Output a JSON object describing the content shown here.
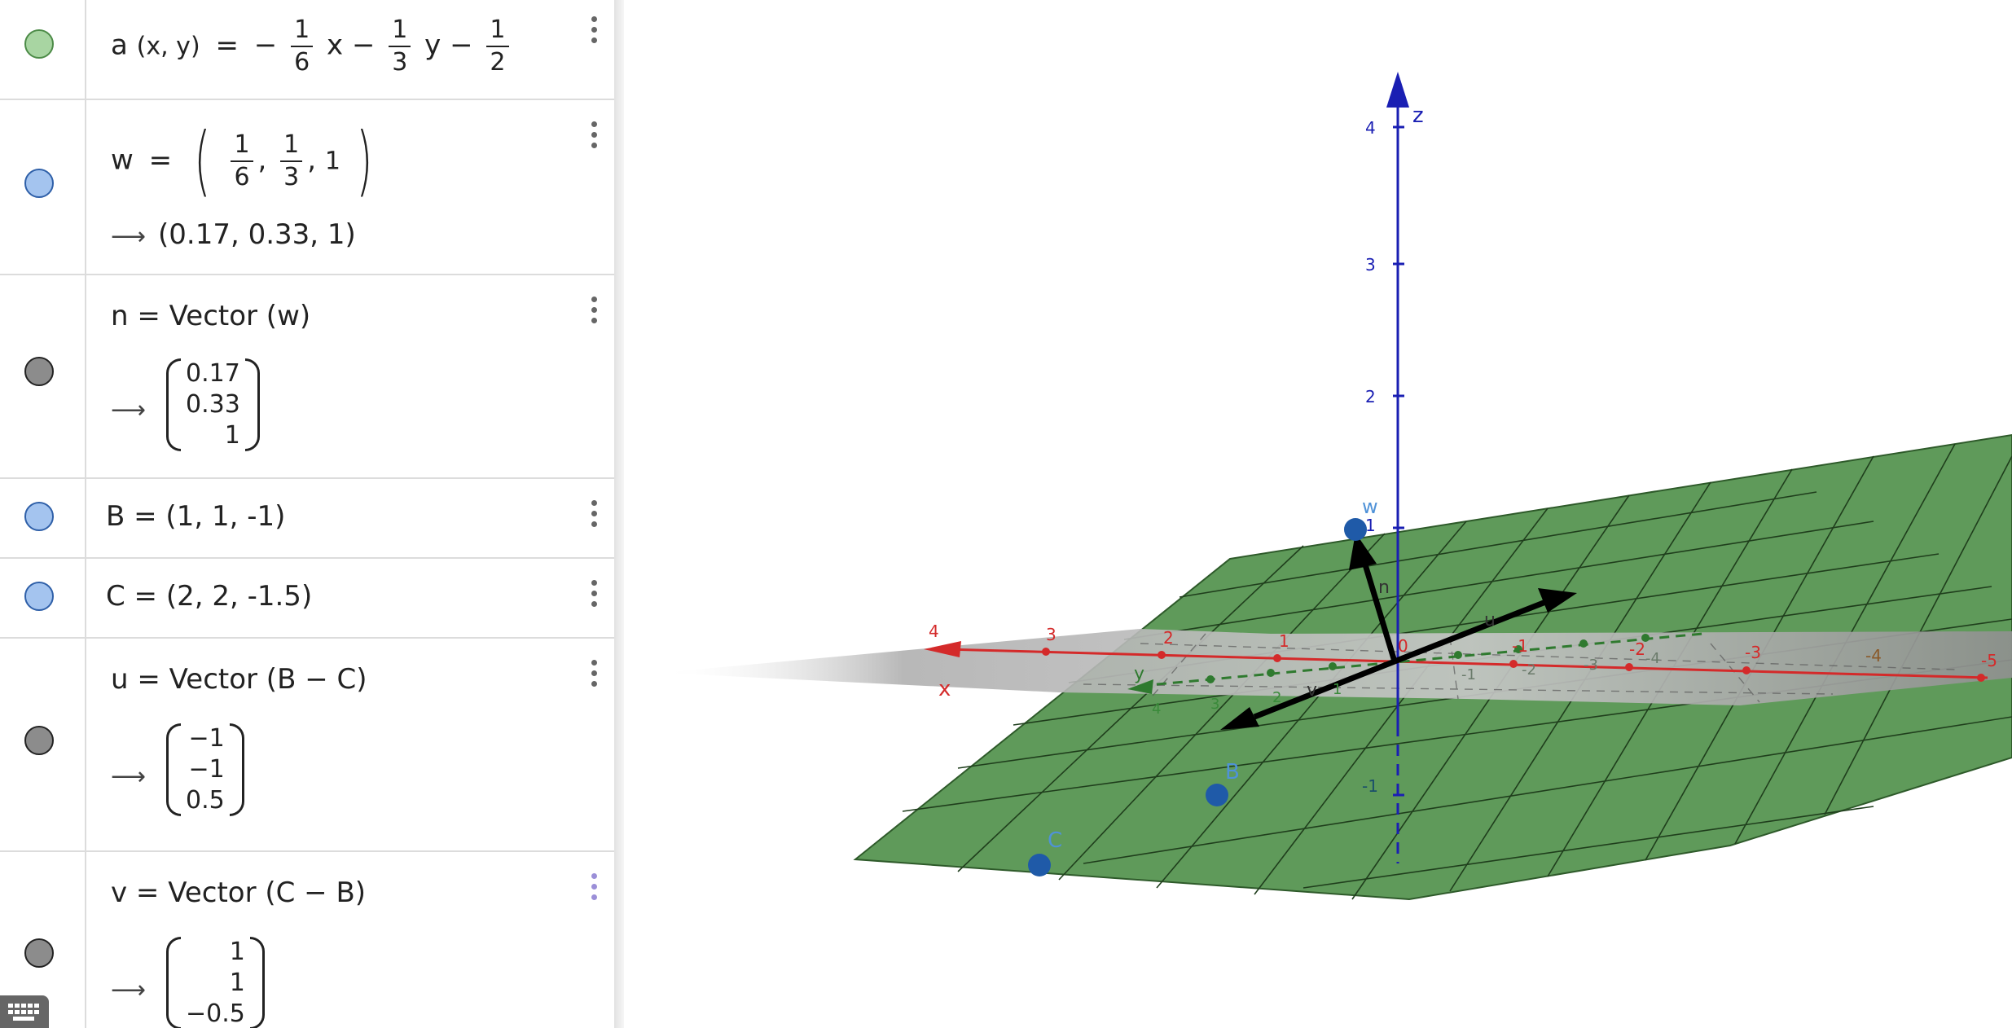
{
  "algebra": {
    "rows": [
      {
        "lhs": "a",
        "args": "(x, y)",
        "eq": "=",
        "sign": "−",
        "c1_num": "1",
        "c1_den": "6",
        "v1": "x",
        "op1": "−",
        "c2_num": "1",
        "c2_den": "3",
        "v2": "y",
        "op2": "−",
        "c3_num": "1",
        "c3_den": "2",
        "color": "#a8d5a2"
      },
      {
        "lhs": "w",
        "eq": "=",
        "n1": "1",
        "d1": "6",
        "n2": "1",
        "d2": "3",
        "last": "1",
        "arrow": "⟶",
        "result": "(0.17, 0.33, 1)",
        "color": "#a4c4ef"
      },
      {
        "text": "n = Vector (w)",
        "arrow": "⟶",
        "vec": [
          "0.17",
          "0.33",
          "1"
        ],
        "color": "#8c8c8c"
      },
      {
        "text": "B = (1, 1, -1)",
        "color": "#a4c4ef"
      },
      {
        "text": "C = (2, 2, -1.5)",
        "color": "#a4c4ef"
      },
      {
        "text": "u = Vector (B − C)",
        "arrow": "⟶",
        "vec": [
          "−1",
          "−1",
          "0.5"
        ],
        "color": "#8c8c8c"
      },
      {
        "text": "v = Vector (C − B)",
        "arrow": "⟶",
        "vec": [
          "1",
          "1",
          "−0.5"
        ],
        "color": "#8c8c8c"
      }
    ]
  },
  "graphics": {
    "axis_labels": {
      "x": "x",
      "y": "y",
      "z": "z"
    },
    "z_ticks": [
      "4",
      "3",
      "2",
      "1",
      "-1"
    ],
    "x_ticks_front": [
      "4",
      "3",
      "2",
      "1",
      "0"
    ],
    "x_ticks_back": [
      "-1",
      "-2",
      "-3",
      "-4",
      "-5"
    ],
    "y_ticks": [
      "4",
      "3",
      "2",
      "1",
      "-1",
      "-2",
      "-3",
      "-4"
    ],
    "points": {
      "w": "w",
      "B": "B",
      "C": "C"
    },
    "vectors": {
      "n": "n",
      "u": "u",
      "v": "v"
    },
    "colors": {
      "plane": "#4a8c48",
      "x_axis": "#d42a2a",
      "y_axis": "#2f7a2f",
      "z_axis": "#1a1fb3",
      "point": "#1f5aa8",
      "point_label": "#4f92d8"
    }
  }
}
